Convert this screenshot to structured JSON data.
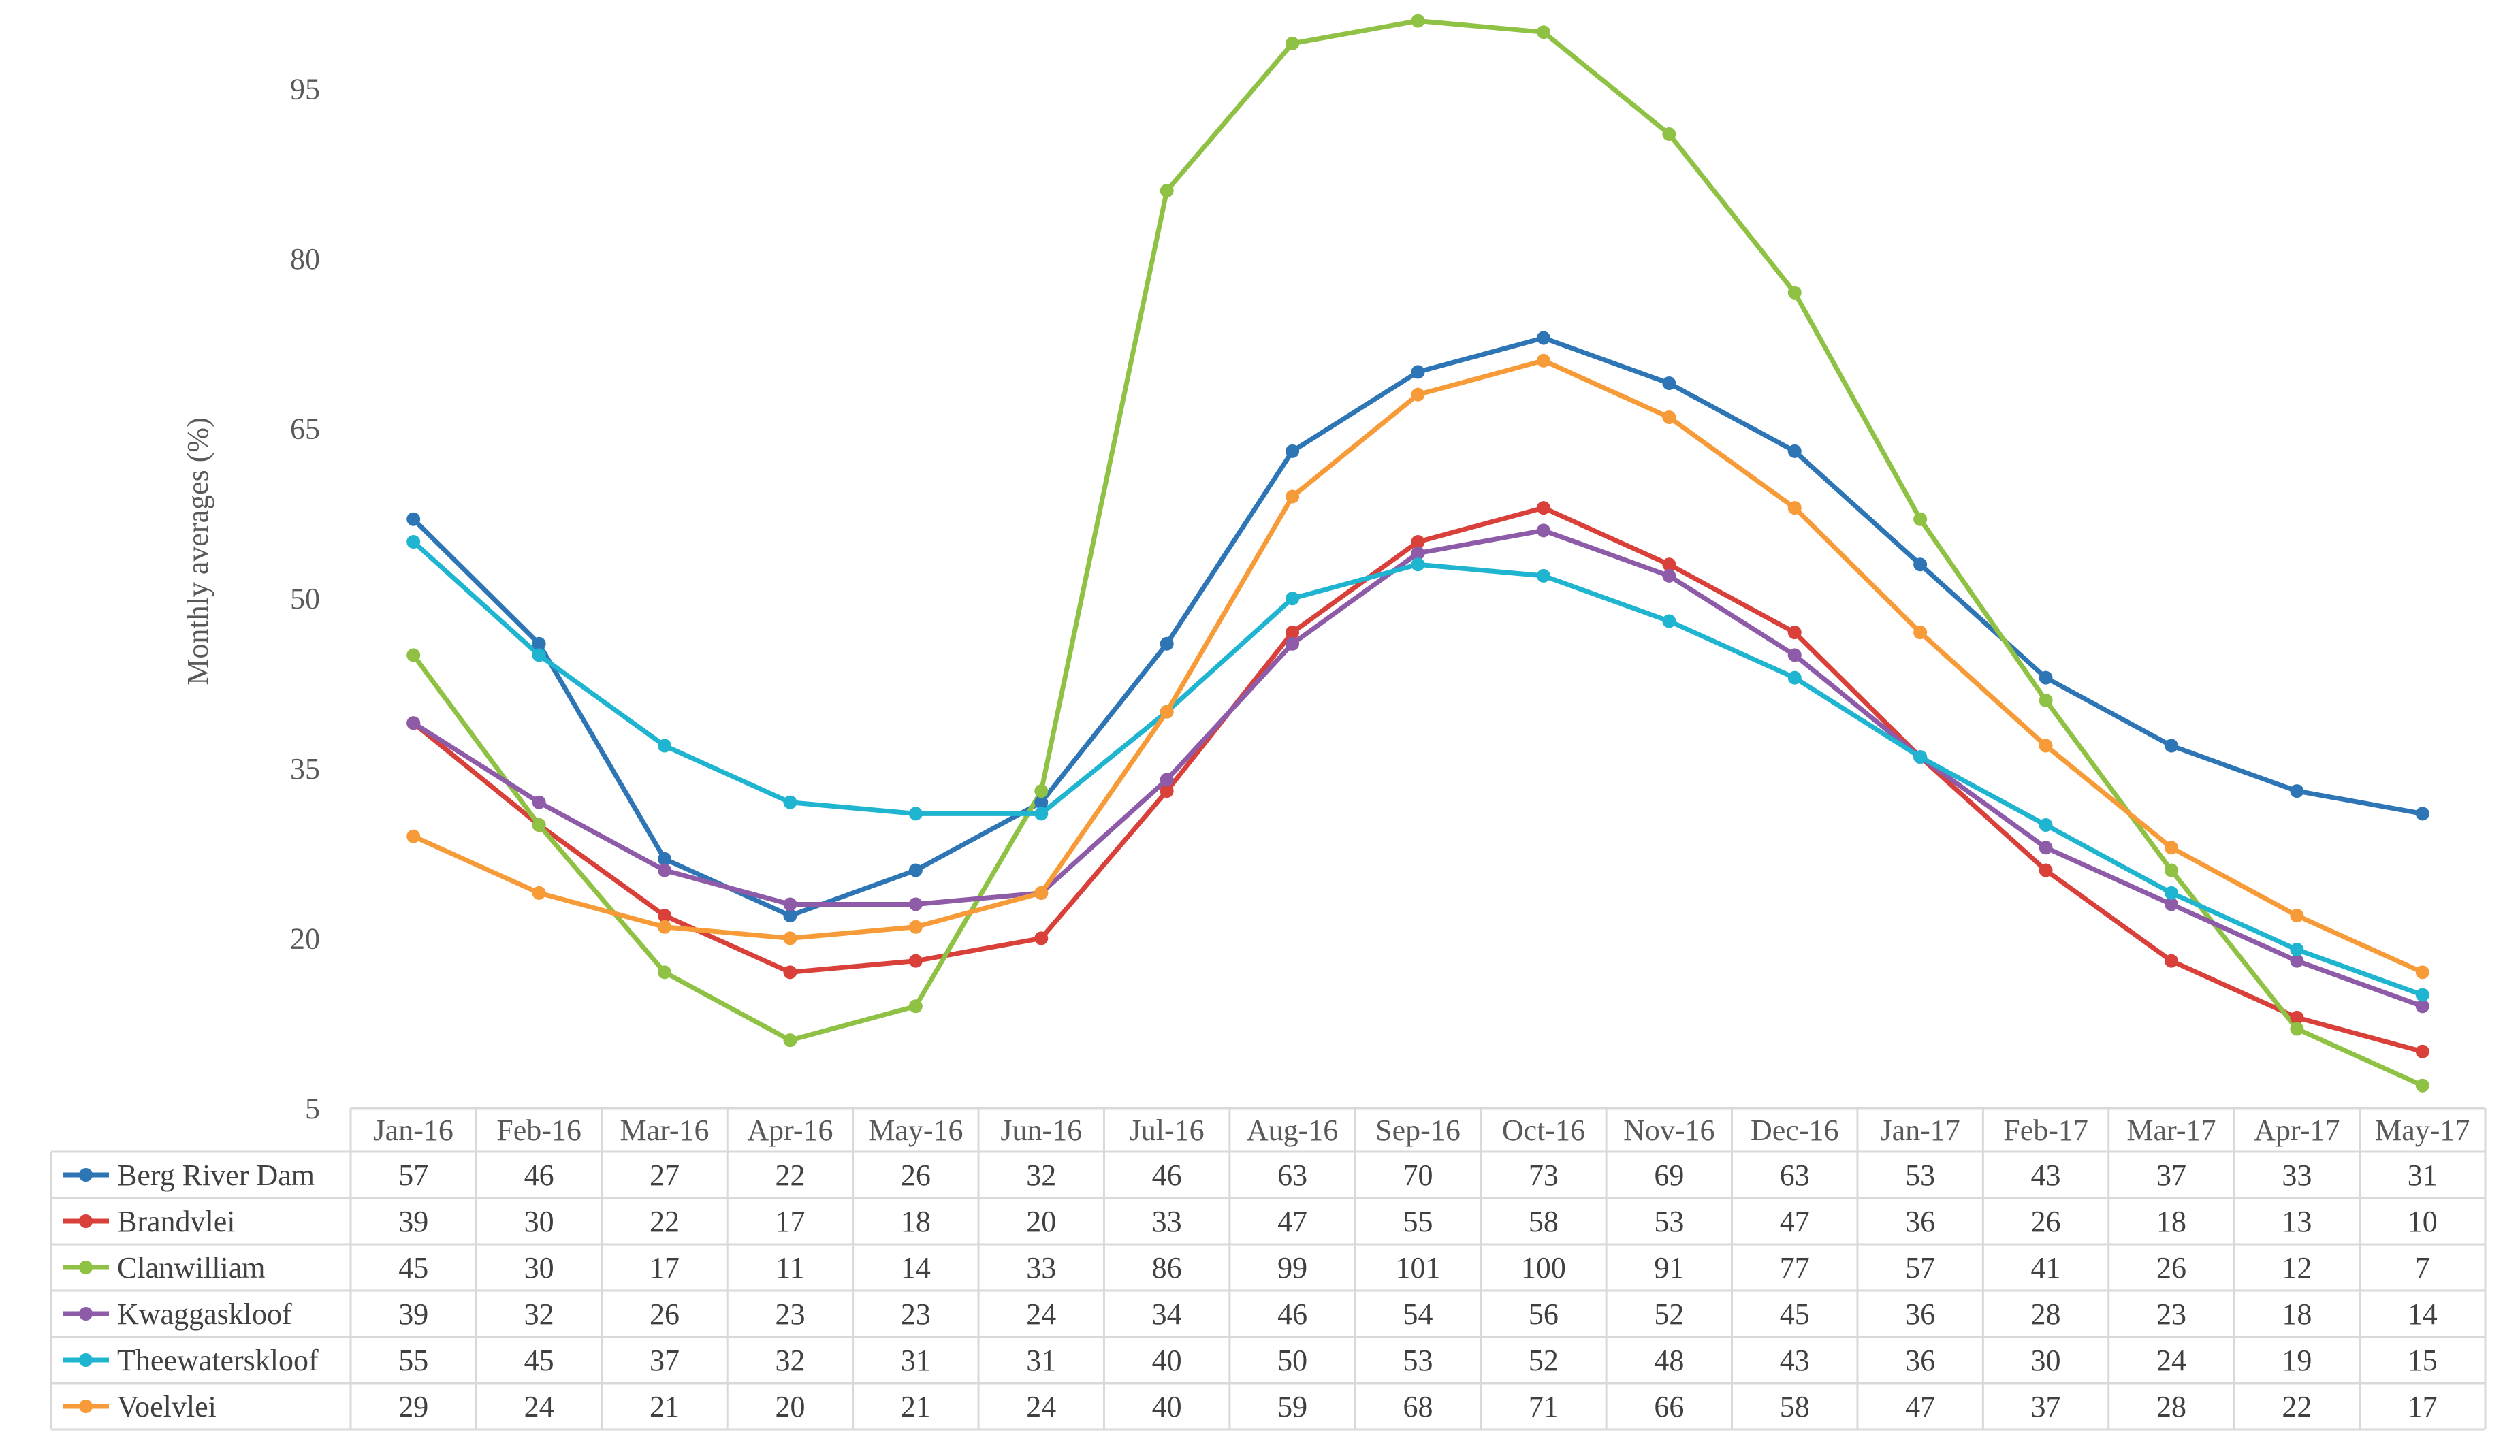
{
  "chart_data": {
    "type": "line",
    "title": "",
    "xlabel": "",
    "ylabel": "Monthly averages (%)",
    "yticks": [
      "5",
      "20",
      "35",
      "50",
      "65",
      "80",
      "95"
    ],
    "ylim": [
      5,
      102
    ],
    "grid": false,
    "legend_placement": "data-table",
    "categories": [
      "Jan-16",
      "Feb-16",
      "Mar-16",
      "Apr-16",
      "May-16",
      "Jun-16",
      "Jul-16",
      "Aug-16",
      "Sep-16",
      "Oct-16",
      "Nov-16",
      "Dec-16",
      "Jan-17",
      "Feb-17",
      "Mar-17",
      "Apr-17",
      "May-17"
    ],
    "series": [
      {
        "name": "Berg River Dam",
        "color": "#2e75b6",
        "values": [
          57,
          46,
          27,
          22,
          26,
          32,
          46,
          63,
          70,
          73,
          69,
          63,
          53,
          43,
          37,
          33,
          31
        ],
        "labels": [
          "57",
          "46",
          "27",
          "22",
          "26",
          "32",
          "46",
          "63",
          "70",
          "73",
          "69",
          "63",
          "53",
          "43",
          "37",
          "33",
          "31"
        ]
      },
      {
        "name": "Brandvlei",
        "color": "#d9403a",
        "values": [
          39,
          30,
          22,
          17,
          18,
          20,
          33,
          47,
          55,
          58,
          53,
          47,
          36,
          26,
          18,
          13,
          10
        ],
        "labels": [
          "39",
          "30",
          "22",
          "17",
          "18",
          "20",
          "33",
          "47",
          "55",
          "58",
          "53",
          "47",
          "36",
          "26",
          "18",
          "13",
          "10"
        ]
      },
      {
        "name": "Clanwilliam",
        "color": "#8fc145",
        "values": [
          45,
          30,
          17,
          11,
          14,
          33,
          86,
          99,
          101,
          100,
          91,
          77,
          57,
          41,
          26,
          12,
          7
        ],
        "labels": [
          "45",
          "30",
          "17",
          "11",
          "14",
          "33",
          "86",
          "99",
          "101",
          "100",
          "91",
          "77",
          "57",
          "41",
          "26",
          "12",
          "7"
        ]
      },
      {
        "name": "Kwaggaskloof",
        "color": "#8e5ba8",
        "values": [
          39,
          32,
          26,
          23,
          23,
          24,
          34,
          46,
          54,
          56,
          52,
          45,
          36,
          28,
          23,
          18,
          14
        ],
        "labels": [
          "39",
          "32",
          "26",
          "23",
          "23",
          "24",
          "34",
          "46",
          "54",
          "56",
          "52",
          "45",
          "36",
          "28",
          "23",
          "18",
          "14"
        ]
      },
      {
        "name": "Theewaterskloof",
        "color": "#1fb4cf",
        "values": [
          55,
          45,
          37,
          32,
          31,
          31,
          40,
          50,
          53,
          52,
          48,
          43,
          36,
          30,
          24,
          19,
          15
        ],
        "labels": [
          "55",
          "45",
          "37",
          "32",
          "31",
          "31",
          "40",
          "50",
          "53",
          "52",
          "48",
          "43",
          "36",
          "30",
          "24",
          "19",
          "15"
        ]
      },
      {
        "name": "Voelvlei",
        "color": "#f79a38",
        "values": [
          29,
          24,
          21,
          20,
          21,
          24,
          40,
          59,
          68,
          71,
          66,
          58,
          47,
          37,
          28,
          22,
          17
        ],
        "labels": [
          "29",
          "24",
          "21",
          "20",
          "21",
          "24",
          "40",
          "59",
          "68",
          "71",
          "66",
          "58",
          "47",
          "37",
          "28",
          "22",
          "17"
        ]
      }
    ]
  }
}
